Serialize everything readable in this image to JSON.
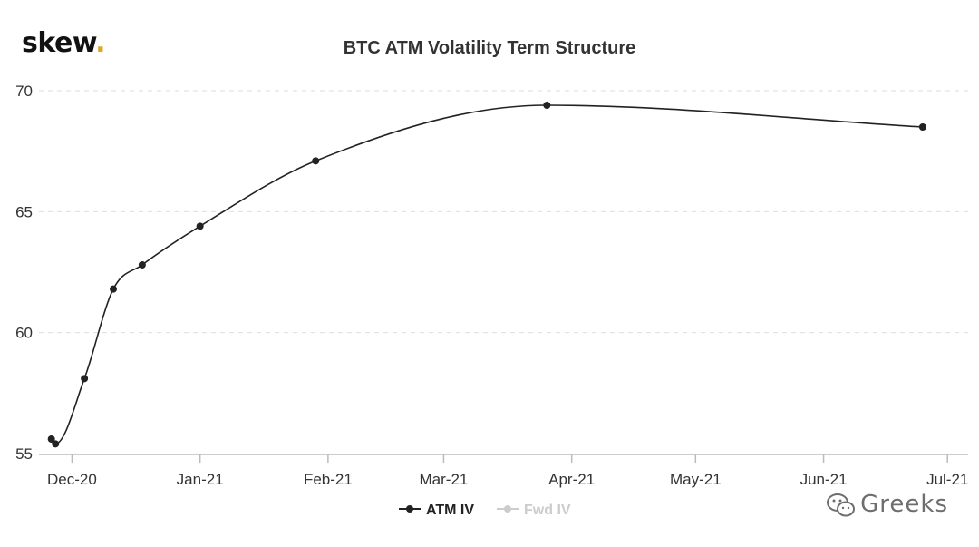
{
  "logo": {
    "text": "skew",
    "dot": "."
  },
  "watermark": {
    "text": "Greeks",
    "icon": "wechat-icon"
  },
  "chart_data": {
    "type": "line",
    "title": "BTC ATM Volatility Term Structure",
    "xlabel": "",
    "ylabel": "",
    "ylim": [
      55,
      70
    ],
    "yticks": [
      55,
      60,
      65,
      70
    ],
    "xlim": [
      "2020-11-23",
      "2021-07-06"
    ],
    "xticks": [
      {
        "label": "Dec-20",
        "date": "2020-12-01"
      },
      {
        "label": "Jan-21",
        "date": "2021-01-01"
      },
      {
        "label": "Feb-21",
        "date": "2021-02-01"
      },
      {
        "label": "Mar-21",
        "date": "2021-03-01"
      },
      {
        "label": "Apr-21",
        "date": "2021-04-01"
      },
      {
        "label": "May-21",
        "date": "2021-05-01"
      },
      {
        "label": "Jun-21",
        "date": "2021-06-01"
      },
      {
        "label": "Jul-21",
        "date": "2021-07-01"
      }
    ],
    "grid": true,
    "legend_position": "bottom-center",
    "series": [
      {
        "name": "ATM IV",
        "color": "#222222",
        "points": [
          {
            "x": "2020-11-26",
            "y": 55.6
          },
          {
            "x": "2020-11-27",
            "y": 55.4
          },
          {
            "x": "2020-12-04",
            "y": 58.1
          },
          {
            "x": "2020-12-11",
            "y": 61.8
          },
          {
            "x": "2020-12-18",
            "y": 62.8
          },
          {
            "x": "2021-01-01",
            "y": 64.4
          },
          {
            "x": "2021-01-29",
            "y": 67.1
          },
          {
            "x": "2021-03-26",
            "y": 69.4
          },
          {
            "x": "2021-06-25",
            "y": 68.5
          }
        ]
      },
      {
        "name": "Fwd IV",
        "color": "#cccccc",
        "points": []
      }
    ]
  }
}
